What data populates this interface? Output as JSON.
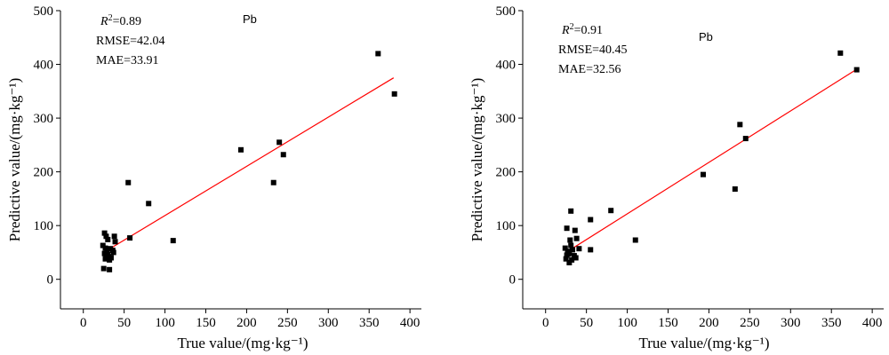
{
  "chart_data": [
    {
      "type": "scatter",
      "title": "Pb",
      "xlabel": "True value/(mg·kg⁻¹)",
      "ylabel": "Predictive value/(mg·kg⁻¹)",
      "xlim": [
        -28,
        414
      ],
      "ylim": [
        -55,
        500
      ],
      "xticks": [
        0,
        50,
        100,
        150,
        200,
        250,
        300,
        350,
        400
      ],
      "yticks": [
        0,
        100,
        200,
        300,
        400,
        500
      ],
      "stats": {
        "r2": "=0.89",
        "rmse": "RMSE=42.04",
        "mae": "MAE=33.91"
      },
      "fit_line": {
        "x": [
          25,
          380
        ],
        "y": [
          50,
          375
        ],
        "color": "#ff0000"
      },
      "points": [
        [
          361,
          420
        ],
        [
          381,
          345
        ],
        [
          240,
          255
        ],
        [
          245,
          232
        ],
        [
          193,
          241
        ],
        [
          233,
          180
        ],
        [
          55,
          180
        ],
        [
          80,
          141
        ],
        [
          110,
          72
        ],
        [
          57,
          77
        ],
        [
          26,
          86
        ],
        [
          28,
          80
        ],
        [
          30,
          74
        ],
        [
          38,
          80
        ],
        [
          39,
          70
        ],
        [
          24,
          63
        ],
        [
          27,
          58
        ],
        [
          29,
          53
        ],
        [
          33,
          57
        ],
        [
          36,
          54
        ],
        [
          26,
          48
        ],
        [
          28,
          44
        ],
        [
          31,
          42
        ],
        [
          27,
          38
        ],
        [
          34,
          40
        ],
        [
          32,
          36
        ],
        [
          25,
          20
        ],
        [
          32,
          18
        ],
        [
          37,
          50
        ],
        [
          30,
          46
        ]
      ]
    },
    {
      "type": "scatter",
      "title": "Pb",
      "xlabel": "True value/(mg·kg⁻¹)",
      "ylabel": "Predictive value/(mg·kg⁻¹)",
      "xlim": [
        -28,
        414
      ],
      "ylim": [
        -55,
        500
      ],
      "xticks": [
        0,
        50,
        100,
        150,
        200,
        250,
        300,
        350,
        400
      ],
      "yticks": [
        0,
        100,
        200,
        300,
        400,
        500
      ],
      "stats": {
        "r2": "=0.91",
        "rmse": "RMSE=40.45",
        "mae": "MAE=32.56"
      },
      "fit_line": {
        "x": [
          25,
          380
        ],
        "y": [
          50,
          390
        ],
        "color": "#ff0000"
      },
      "points": [
        [
          361,
          421
        ],
        [
          381,
          390
        ],
        [
          238,
          288
        ],
        [
          245,
          262
        ],
        [
          193,
          195
        ],
        [
          232,
          168
        ],
        [
          80,
          128
        ],
        [
          31,
          127
        ],
        [
          55,
          111
        ],
        [
          110,
          73
        ],
        [
          26,
          95
        ],
        [
          36,
          91
        ],
        [
          30,
          73
        ],
        [
          38,
          76
        ],
        [
          41,
          57
        ],
        [
          24,
          58
        ],
        [
          55,
          55
        ],
        [
          27,
          52
        ],
        [
          33,
          55
        ],
        [
          29,
          49
        ],
        [
          26,
          45
        ],
        [
          35,
          44
        ],
        [
          25,
          38
        ],
        [
          32,
          36
        ],
        [
          29,
          31
        ],
        [
          37,
          40
        ],
        [
          28,
          47
        ],
        [
          31,
          63
        ]
      ]
    }
  ]
}
